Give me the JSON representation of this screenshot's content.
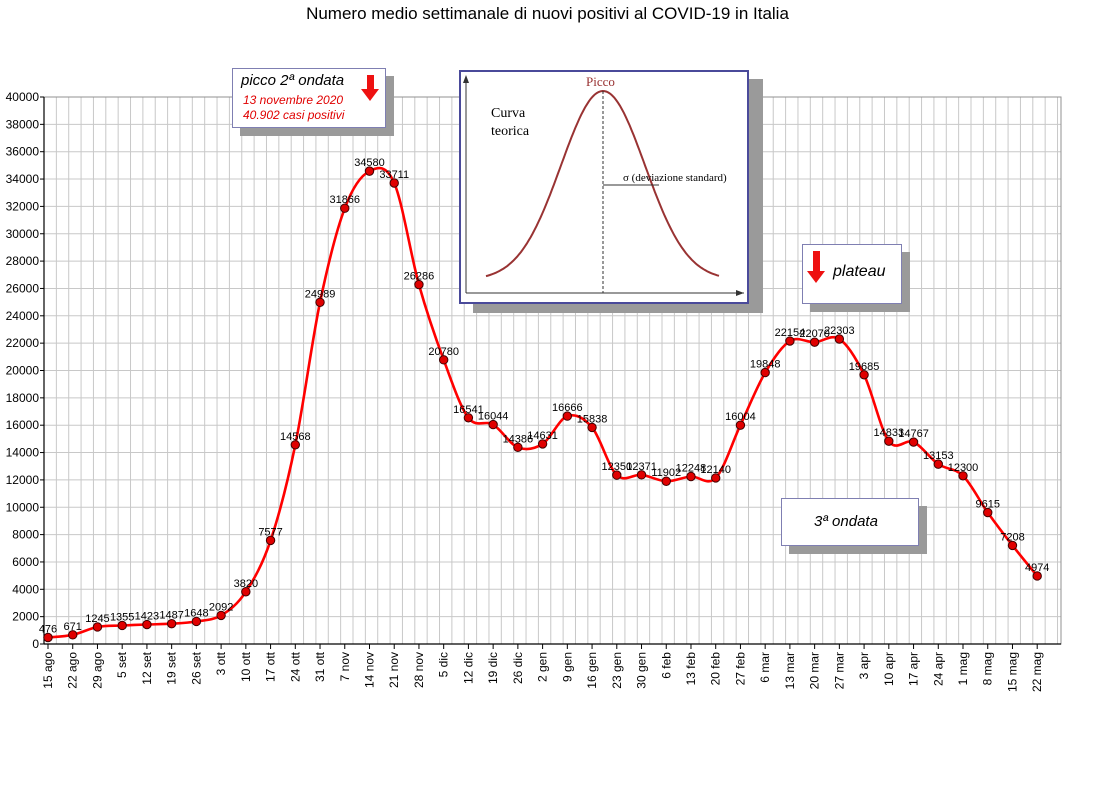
{
  "chart_data": {
    "type": "line",
    "title": "Numero medio settimanale di nuovi positivi al COVID-19 in Italia",
    "categories": [
      "15 ago",
      "22 ago",
      "29 ago",
      "5 set",
      "12 set",
      "19 set",
      "26 set",
      "3 ott",
      "10 ott",
      "17 ott",
      "24 ott",
      "31 ott",
      "7 nov",
      "14 nov",
      "21 nov",
      "28 nov",
      "5 dic",
      "12 dic",
      "19 dic",
      "26 dic",
      "2 gen",
      "9 gen",
      "16 gen",
      "23 gen",
      "30 gen",
      "6 feb",
      "13 feb",
      "20 feb",
      "27 feb",
      "6 mar",
      "13 mar",
      "20 mar",
      "27 mar",
      "3 apr",
      "10 apr",
      "17 apr",
      "24 apr",
      "1 mag",
      "8 mag",
      "15 mag",
      "22 mag"
    ],
    "series": [
      {
        "values": [
          476,
          671,
          1245,
          1355,
          1423,
          1487,
          1648,
          2092,
          3820,
          7577,
          14568,
          24989,
          31866,
          34580,
          33711,
          26286,
          20780,
          16541,
          16044,
          14386,
          14631,
          16666,
          15838,
          12350,
          12371,
          11902,
          12248,
          12140,
          16004,
          19848,
          22154,
          22070,
          22303,
          19685,
          14833,
          14767,
          13153,
          12300,
          9615,
          7208,
          4974
        ],
        "color": "#ff0000"
      }
    ],
    "ylim": [
      0,
      40000
    ],
    "yticks": [
      0,
      2000,
      4000,
      6000,
      8000,
      10000,
      12000,
      14000,
      16000,
      18000,
      20000,
      22000,
      24000,
      26000,
      28000,
      30000,
      32000,
      34000,
      36000,
      38000,
      40000
    ],
    "grid": true
  },
  "annotations": {
    "peak": {
      "title": "picco 2ª ondata",
      "date": "13 novembre 2020",
      "cases": "40.902 casi positivi"
    },
    "plateau": "plateau",
    "third_wave": "3ª ondata"
  },
  "inset": {
    "peak_label": "Picco",
    "curve_label_1": "Curva",
    "curve_label_2": "teorica",
    "sigma_label": "σ  (deviazione standard)"
  },
  "colors": {
    "line": "#ff0000",
    "marker": "#e00000",
    "grid": "#c8c8c8",
    "arrow": "#ee1111"
  }
}
